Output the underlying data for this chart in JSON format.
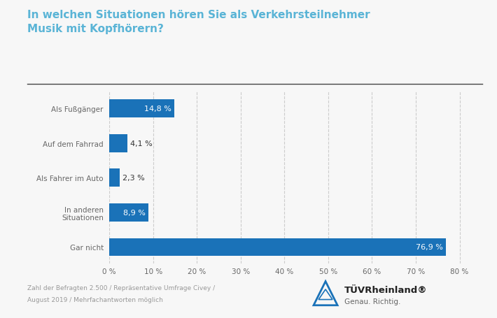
{
  "title_line1": "In welchen Situationen hören Sie als Verkehrsteilnehmer",
  "title_line2": "Musik mit Kopfhörern?",
  "categories": [
    "Als Fußgänger",
    "Auf dem Fahrrad",
    "Als Fahrer im Auto",
    "In anderen\nSituationen",
    "Gar nicht"
  ],
  "values": [
    14.8,
    4.1,
    2.3,
    8.9,
    76.9
  ],
  "labels": [
    "14,8 %",
    "4,1 %",
    "2,3 %",
    "8,9 %",
    "76,9 %"
  ],
  "bar_color": "#1a72b8",
  "background_color": "#f7f7f7",
  "title_color": "#5ab4d6",
  "footnote_line1": "Zahl der Befragten 2.500 / Repräsentative Umfrage Civey /",
  "footnote_line2": "August 2019 / Mehrfachantworten möglich",
  "xticks": [
    0,
    10,
    20,
    30,
    40,
    50,
    60,
    70,
    80
  ],
  "xlim": [
    0,
    84
  ],
  "bar_label_color_inside": "#ffffff",
  "bar_label_color_outside": "#333333",
  "grid_color": "#cccccc",
  "separator_color": "#444444",
  "tick_label_color": "#666666",
  "ylabel_color": "#888888"
}
